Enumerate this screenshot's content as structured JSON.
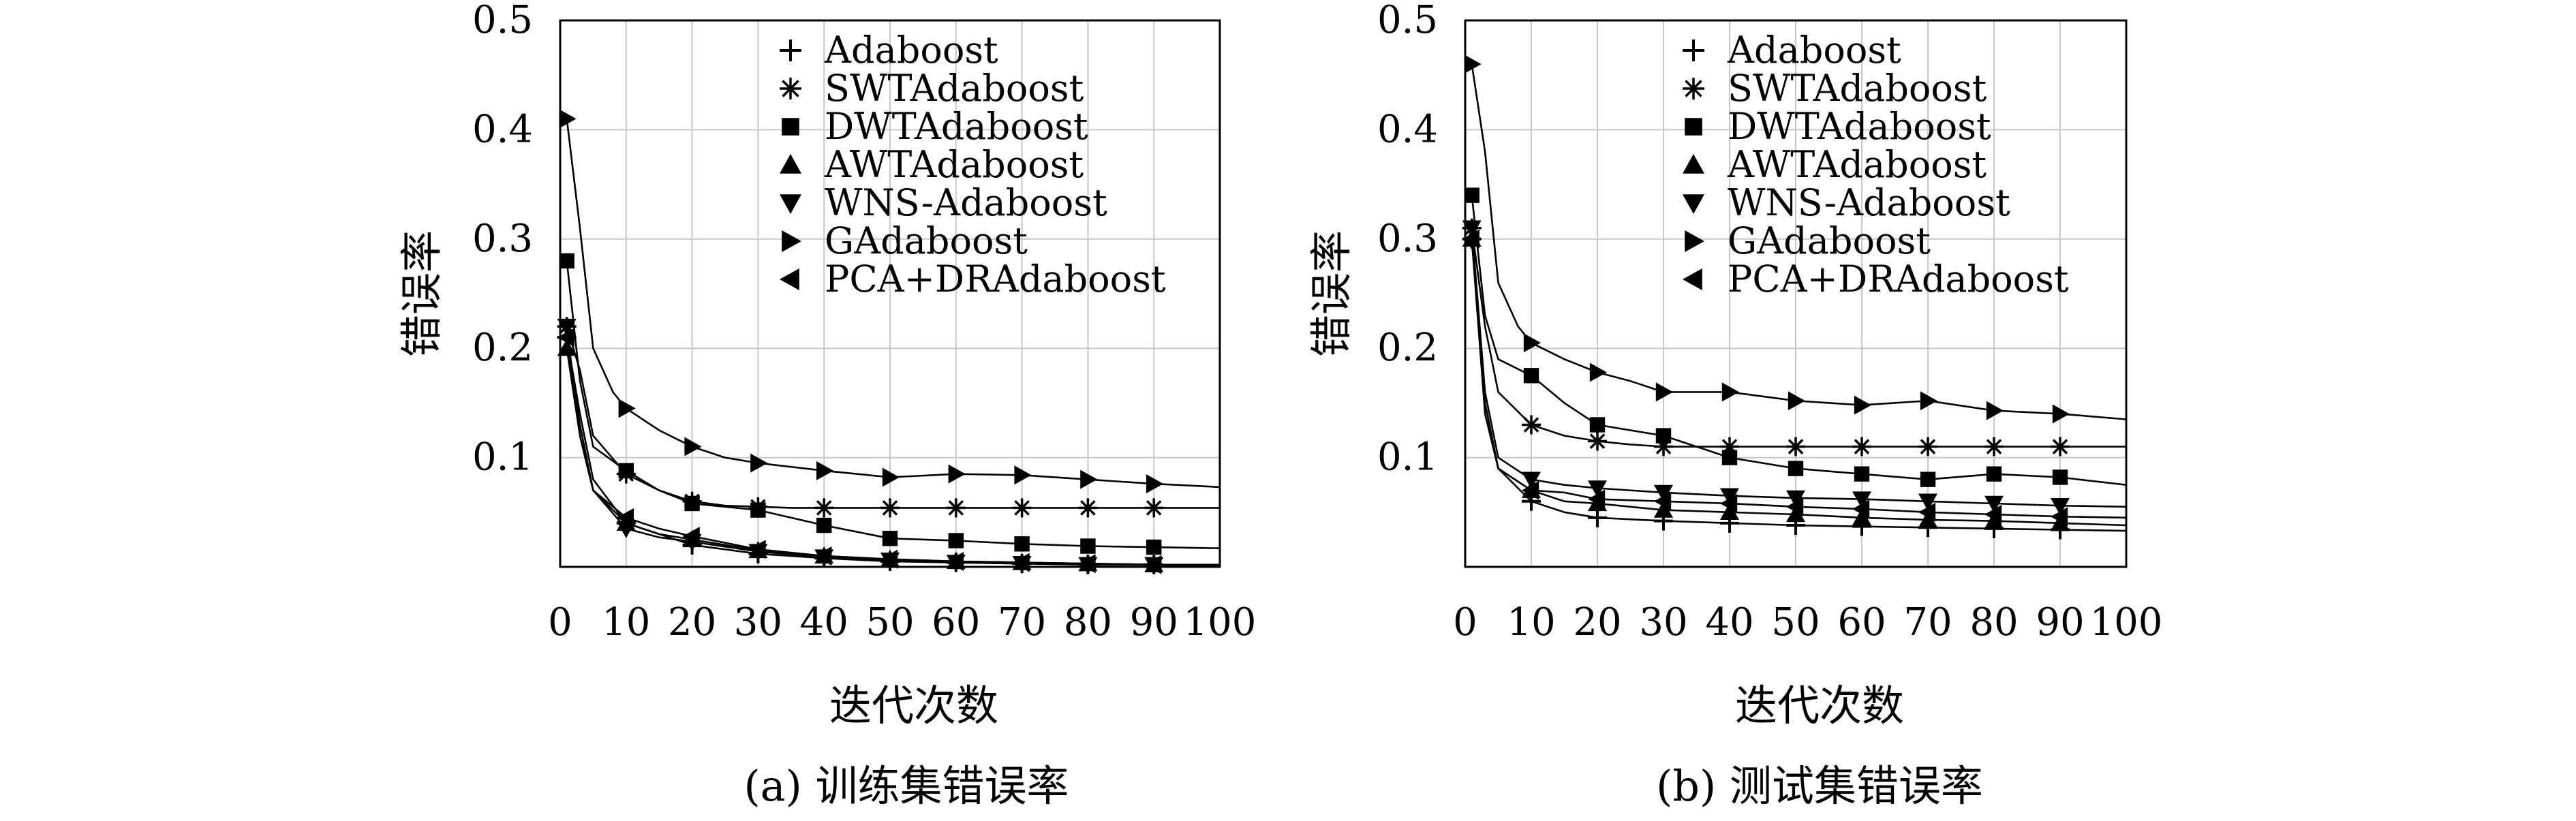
{
  "chart_data": [
    {
      "type": "line",
      "title": "",
      "caption": "(a) 训练集错误率",
      "xlabel": "迭代次数",
      "ylabel": "错误率",
      "xlim": [
        0,
        100
      ],
      "ylim": [
        0,
        0.5
      ],
      "xticks": [
        "0",
        "10",
        "20",
        "30",
        "40",
        "50",
        "60",
        "70",
        "80",
        "90",
        "100"
      ],
      "yticks": [
        "0.1",
        "0.2",
        "0.3",
        "0.4",
        "0.5"
      ],
      "grid": true,
      "legend_position": "top-right",
      "series": [
        {
          "name": "Adaboost",
          "marker": "plus",
          "x": [
            1,
            3,
            5,
            10,
            15,
            20,
            30,
            40,
            50,
            60,
            70,
            80,
            90,
            100
          ],
          "y": [
            0.21,
            0.14,
            0.08,
            0.04,
            0.03,
            0.02,
            0.012,
            0.008,
            0.005,
            0.004,
            0.003,
            0.002,
            0.002,
            0.001
          ]
        },
        {
          "name": "SWTAdaboost",
          "marker": "asterisk",
          "x": [
            1,
            3,
            5,
            10,
            15,
            20,
            25,
            30,
            35,
            40,
            50,
            60,
            70,
            80,
            90,
            100
          ],
          "y": [
            0.22,
            0.18,
            0.12,
            0.085,
            0.07,
            0.06,
            0.056,
            0.055,
            0.054,
            0.054,
            0.054,
            0.054,
            0.054,
            0.054,
            0.054,
            0.054
          ]
        },
        {
          "name": "DWTAdaboost",
          "marker": "square",
          "x": [
            1,
            3,
            5,
            10,
            15,
            20,
            30,
            40,
            50,
            60,
            70,
            80,
            90,
            100
          ],
          "y": [
            0.28,
            0.17,
            0.11,
            0.088,
            0.07,
            0.058,
            0.052,
            0.038,
            0.026,
            0.024,
            0.021,
            0.019,
            0.018,
            0.017
          ]
        },
        {
          "name": "AWTAdaboost",
          "marker": "triangle-up",
          "x": [
            1,
            3,
            5,
            10,
            15,
            20,
            30,
            40,
            50,
            60,
            70,
            80,
            90,
            100
          ],
          "y": [
            0.2,
            0.12,
            0.07,
            0.04,
            0.03,
            0.025,
            0.015,
            0.01,
            0.007,
            0.005,
            0.004,
            0.003,
            0.002,
            0.002
          ]
        },
        {
          "name": "WNS-Adaboost",
          "marker": "triangle-down",
          "x": [
            1,
            3,
            5,
            10,
            15,
            20,
            30,
            40,
            50,
            60,
            70,
            80,
            90,
            100
          ],
          "y": [
            0.22,
            0.12,
            0.07,
            0.035,
            0.027,
            0.023,
            0.014,
            0.009,
            0.006,
            0.004,
            0.003,
            0.002,
            0.002,
            0.001
          ]
        },
        {
          "name": "GAdaboost",
          "marker": "triangle-right",
          "x": [
            1,
            3,
            5,
            8,
            10,
            15,
            20,
            25,
            30,
            40,
            50,
            60,
            70,
            80,
            90,
            100
          ],
          "y": [
            0.41,
            0.31,
            0.2,
            0.16,
            0.145,
            0.125,
            0.11,
            0.1,
            0.095,
            0.088,
            0.082,
            0.085,
            0.084,
            0.08,
            0.076,
            0.073
          ]
        },
        {
          "name": "PCA+DRAdaboost",
          "marker": "triangle-left",
          "x": [
            1,
            3,
            5,
            10,
            15,
            20,
            30,
            40,
            50,
            60,
            70,
            80,
            90,
            100
          ],
          "y": [
            0.21,
            0.13,
            0.07,
            0.045,
            0.035,
            0.028,
            0.016,
            0.01,
            0.007,
            0.005,
            0.004,
            0.003,
            0.002,
            0.002
          ]
        }
      ]
    },
    {
      "type": "line",
      "title": "",
      "caption": "(b) 测试集错误率",
      "xlabel": "迭代次数",
      "ylabel": "错误率",
      "xlim": [
        0,
        100
      ],
      "ylim": [
        0,
        0.5
      ],
      "xticks": [
        "0",
        "10",
        "20",
        "30",
        "40",
        "50",
        "60",
        "70",
        "80",
        "90",
        "100"
      ],
      "yticks": [
        "0.1",
        "0.2",
        "0.3",
        "0.4",
        "0.5"
      ],
      "grid": true,
      "legend_position": "top-right",
      "series": [
        {
          "name": "Adaboost",
          "marker": "plus",
          "x": [
            1,
            3,
            5,
            10,
            15,
            20,
            30,
            40,
            50,
            60,
            70,
            80,
            90,
            100
          ],
          "y": [
            0.3,
            0.15,
            0.09,
            0.06,
            0.05,
            0.045,
            0.042,
            0.04,
            0.038,
            0.037,
            0.036,
            0.035,
            0.034,
            0.033
          ]
        },
        {
          "name": "SWTAdaboost",
          "marker": "asterisk",
          "x": [
            1,
            3,
            5,
            10,
            15,
            20,
            25,
            30,
            40,
            50,
            60,
            70,
            80,
            90,
            100
          ],
          "y": [
            0.31,
            0.22,
            0.16,
            0.13,
            0.12,
            0.115,
            0.112,
            0.11,
            0.11,
            0.11,
            0.11,
            0.11,
            0.11,
            0.11,
            0.11
          ]
        },
        {
          "name": "DWTAdaboost",
          "marker": "square",
          "x": [
            1,
            3,
            5,
            10,
            15,
            20,
            30,
            40,
            50,
            60,
            70,
            80,
            90,
            100
          ],
          "y": [
            0.34,
            0.23,
            0.19,
            0.175,
            0.15,
            0.13,
            0.12,
            0.1,
            0.09,
            0.085,
            0.08,
            0.085,
            0.082,
            0.075
          ]
        },
        {
          "name": "AWTAdaboost",
          "marker": "triangle-up",
          "x": [
            1,
            3,
            5,
            10,
            15,
            20,
            30,
            40,
            50,
            60,
            70,
            80,
            90,
            100
          ],
          "y": [
            0.3,
            0.15,
            0.09,
            0.07,
            0.06,
            0.058,
            0.052,
            0.05,
            0.048,
            0.045,
            0.043,
            0.042,
            0.04,
            0.038
          ]
        },
        {
          "name": "WNS-Adaboost",
          "marker": "triangle-down",
          "x": [
            1,
            3,
            5,
            10,
            15,
            20,
            30,
            40,
            50,
            60,
            70,
            80,
            90,
            100
          ],
          "y": [
            0.31,
            0.16,
            0.1,
            0.08,
            0.075,
            0.072,
            0.068,
            0.065,
            0.063,
            0.062,
            0.06,
            0.058,
            0.056,
            0.055
          ]
        },
        {
          "name": "GAdaboost",
          "marker": "triangle-right",
          "x": [
            1,
            3,
            5,
            8,
            10,
            15,
            20,
            25,
            30,
            40,
            50,
            60,
            70,
            80,
            90,
            100
          ],
          "y": [
            0.46,
            0.38,
            0.26,
            0.22,
            0.205,
            0.19,
            0.178,
            0.17,
            0.16,
            0.16,
            0.152,
            0.148,
            0.152,
            0.143,
            0.14,
            0.135
          ]
        },
        {
          "name": "PCA+DRAdaboost",
          "marker": "triangle-left",
          "x": [
            1,
            3,
            5,
            10,
            15,
            20,
            30,
            40,
            50,
            60,
            70,
            80,
            90,
            100
          ],
          "y": [
            0.3,
            0.14,
            0.09,
            0.07,
            0.068,
            0.062,
            0.06,
            0.058,
            0.055,
            0.053,
            0.05,
            0.048,
            0.046,
            0.045
          ]
        }
      ]
    }
  ]
}
